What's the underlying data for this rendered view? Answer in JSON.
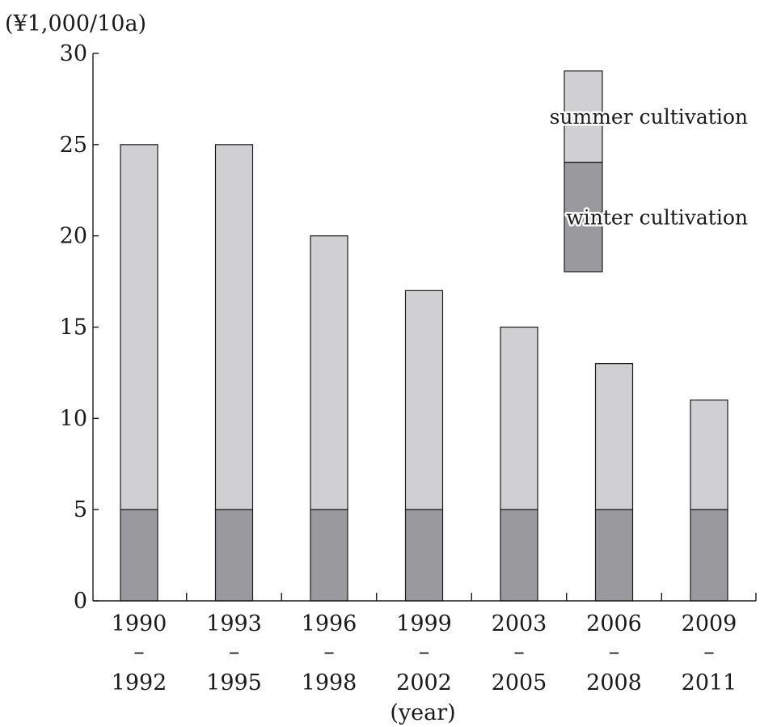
{
  "chart_data": {
    "type": "bar",
    "stacked": true,
    "unit_label": "(¥1,000/10a)",
    "xlabel": "(year)",
    "categories": [
      [
        "1990",
        "–",
        "1992"
      ],
      [
        "1993",
        "–",
        "1995"
      ],
      [
        "1996",
        "–",
        "1998"
      ],
      [
        "1999",
        "–",
        "2002"
      ],
      [
        "2003",
        "–",
        "2005"
      ],
      [
        "2006",
        "–",
        "2008"
      ],
      [
        "2009",
        "–",
        "2011"
      ]
    ],
    "series": [
      {
        "name": "winter cultivation",
        "values": [
          5,
          5,
          5,
          5,
          5,
          5,
          5
        ],
        "color": "#9a9a9e"
      },
      {
        "name": "summer cultivation",
        "values": [
          20,
          20,
          15,
          12,
          10,
          8,
          6
        ],
        "color": "#d0d0d2"
      }
    ],
    "ylim": [
      0,
      30
    ],
    "yticks": [
      0,
      5,
      10,
      15,
      20,
      25,
      30
    ],
    "grid": false,
    "legend": {
      "placement": "top-right",
      "style": "stacked-swatch",
      "segment_values": [
        6,
        5
      ]
    }
  }
}
